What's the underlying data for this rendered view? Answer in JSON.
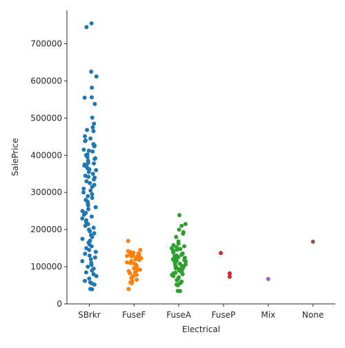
{
  "chart_data": {
    "type": "scatter",
    "subtype": "strip",
    "title": "",
    "xlabel": "Electrical",
    "ylabel": "SalePrice",
    "ylim": [
      0,
      790000
    ],
    "yticks": [
      0,
      100000,
      200000,
      300000,
      400000,
      500000,
      600000,
      700000
    ],
    "ytick_labels": [
      "0",
      "100000",
      "200000",
      "300000",
      "400000",
      "500000",
      "600000",
      "700000"
    ],
    "grid": false,
    "legend": "none",
    "categories": [
      "SBrkr",
      "FuseF",
      "FuseA",
      "FuseP",
      "Mix",
      "None"
    ],
    "colors": [
      "#1f77b4",
      "#ff7f0e",
      "#2ca02c",
      "#d62728",
      "#9467bd",
      "#8c564b"
    ],
    "series": [
      {
        "category": "SBrkr",
        "values": [
          755000,
          745000,
          625000,
          612000,
          582000,
          556000,
          555000,
          538000,
          501000,
          485000,
          475000,
          468000,
          465000,
          451000,
          445000,
          440000,
          438000,
          430000,
          426000,
          424000,
          415000,
          412000,
          410000,
          402000,
          400000,
          395000,
          392000,
          390000,
          385000,
          380000,
          378000,
          375000,
          372000,
          370000,
          365000,
          362000,
          360000,
          355000,
          350000,
          345000,
          342000,
          340000,
          335000,
          330000,
          325000,
          320000,
          315000,
          310000,
          305000,
          300000,
          295000,
          290000,
          285000,
          280000,
          275000,
          270000,
          265000,
          260000,
          255000,
          250000,
          245000,
          240000,
          235000,
          230000,
          225000,
          220000,
          215000,
          210000,
          205000,
          200000,
          195000,
          190000,
          185000,
          180000,
          175000,
          170000,
          165000,
          160000,
          155000,
          150000,
          145000,
          140000,
          135000,
          130000,
          125000,
          120000,
          115000,
          110000,
          105000,
          100000,
          95000,
          90000,
          85000,
          80000,
          75000,
          68000,
          62000,
          58000,
          55000,
          52000,
          40000,
          39300
        ]
      },
      {
        "category": "FuseF",
        "values": [
          169500,
          145000,
          142000,
          140000,
          138000,
          136000,
          135000,
          134000,
          133000,
          132000,
          131000,
          130000,
          129000,
          128000,
          127000,
          126000,
          125000,
          123000,
          120000,
          118000,
          115000,
          112000,
          110000,
          108000,
          105000,
          102000,
          98000,
          96000,
          94000,
          92000,
          90000,
          88000,
          85000,
          82000,
          78000,
          75000,
          70000,
          65000,
          62000,
          60000,
          58000,
          55000,
          40000
        ]
      },
      {
        "category": "FuseA",
        "values": [
          239000,
          215000,
          210000,
          200000,
          193000,
          189000,
          180000,
          168000,
          162000,
          158000,
          155000,
          152000,
          150000,
          148000,
          146000,
          144000,
          142000,
          140000,
          138000,
          136000,
          134000,
          132000,
          130000,
          128000,
          126000,
          124000,
          122000,
          120000,
          118000,
          116000,
          114000,
          112000,
          110000,
          108000,
          106000,
          104000,
          102000,
          100000,
          98000,
          96000,
          94000,
          92000,
          90000,
          88000,
          86000,
          84000,
          82000,
          80000,
          78000,
          75000,
          72000,
          68000,
          64000,
          60000,
          57000,
          55000,
          52000,
          50000,
          35000,
          34900
        ]
      },
      {
        "category": "FuseP",
        "values": [
          137000,
          82000,
          73000
        ]
      },
      {
        "category": "Mix",
        "values": [
          67000
        ]
      },
      {
        "category": "None",
        "values": [
          167500
        ]
      }
    ]
  }
}
